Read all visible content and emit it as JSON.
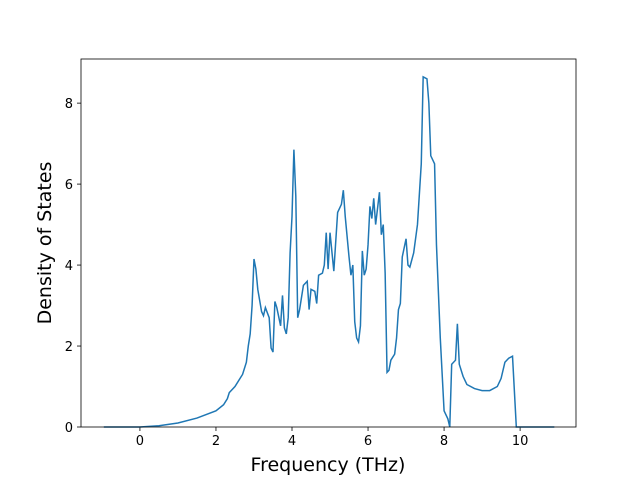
{
  "chart_data": {
    "type": "line",
    "x_label": "Frequency (THz)",
    "y_label": "Density of States",
    "xlim": [
      -1.55,
      11.47
    ],
    "ylim": [
      0,
      9.09
    ],
    "xticks": [
      0,
      2,
      4,
      6,
      8,
      10
    ],
    "yticks": [
      0,
      2,
      4,
      6,
      8
    ],
    "x": [
      -0.95,
      0,
      0.5,
      1.0,
      1.5,
      2.0,
      2.2,
      2.3,
      2.35,
      2.5,
      2.7,
      2.8,
      2.85,
      2.9,
      2.95,
      3.0,
      3.05,
      3.1,
      3.2,
      3.25,
      3.3,
      3.4,
      3.45,
      3.5,
      3.55,
      3.6,
      3.7,
      3.75,
      3.8,
      3.85,
      3.9,
      3.95,
      4.0,
      4.05,
      4.1,
      4.15,
      4.2,
      4.3,
      4.4,
      4.45,
      4.5,
      4.6,
      4.65,
      4.7,
      4.8,
      4.85,
      4.9,
      4.95,
      5.0,
      5.1,
      5.2,
      5.3,
      5.35,
      5.4,
      5.5,
      5.55,
      5.6,
      5.65,
      5.7,
      5.75,
      5.8,
      5.85,
      5.9,
      5.95,
      6.0,
      6.05,
      6.1,
      6.15,
      6.2,
      6.3,
      6.35,
      6.4,
      6.45,
      6.5,
      6.55,
      6.6,
      6.7,
      6.75,
      6.8,
      6.85,
      6.9,
      7.0,
      7.05,
      7.1,
      7.2,
      7.3,
      7.4,
      7.45,
      7.55,
      7.6,
      7.65,
      7.75,
      7.8,
      7.9,
      8.0,
      8.1,
      8.15,
      8.2,
      8.3,
      8.35,
      8.4,
      8.5,
      8.6,
      8.8,
      9.0,
      9.2,
      9.4,
      9.5,
      9.6,
      9.7,
      9.8,
      9.9,
      10.9
    ],
    "series": [
      {
        "color": "#1f77b4",
        "values": [
          0,
          0,
          0.03,
          0.1,
          0.22,
          0.4,
          0.55,
          0.7,
          0.85,
          1.0,
          1.3,
          1.6,
          2.0,
          2.3,
          3.0,
          4.15,
          3.9,
          3.4,
          2.85,
          2.75,
          2.95,
          2.7,
          1.95,
          1.85,
          3.1,
          2.95,
          2.5,
          3.25,
          2.45,
          2.3,
          2.7,
          4.3,
          5.2,
          6.85,
          5.7,
          2.7,
          2.9,
          3.5,
          3.6,
          2.9,
          3.4,
          3.35,
          3.05,
          3.75,
          3.8,
          4.0,
          4.8,
          3.9,
          4.8,
          3.85,
          5.3,
          5.5,
          5.85,
          5.2,
          4.2,
          3.75,
          4.0,
          2.6,
          2.2,
          2.1,
          2.5,
          4.35,
          3.75,
          3.9,
          4.5,
          5.45,
          5.15,
          5.65,
          5.0,
          5.8,
          4.75,
          5.0,
          3.8,
          1.35,
          1.4,
          1.65,
          1.8,
          2.2,
          2.9,
          3.05,
          4.2,
          4.65,
          4.0,
          3.95,
          4.3,
          5.0,
          6.5,
          8.65,
          8.6,
          8.0,
          6.7,
          6.5,
          4.5,
          2.2,
          0.4,
          0.2,
          0.0,
          1.55,
          1.65,
          2.55,
          1.55,
          1.25,
          1.05,
          0.95,
          0.9,
          0.9,
          1.0,
          1.2,
          1.6,
          1.7,
          1.75,
          0.0,
          0
        ]
      }
    ]
  }
}
